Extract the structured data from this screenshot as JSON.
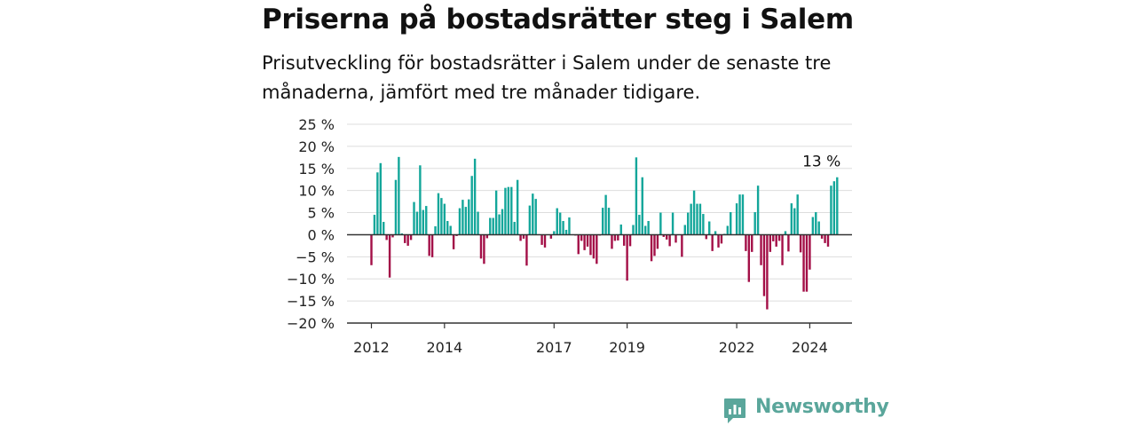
{
  "header": {
    "title": "Priserna på bostadsrätter steg i Salem",
    "subtitle": "Prisutveckling för bostadsrätter i Salem under de senaste tre månaderna, jämfört med tre månader tidigare."
  },
  "brand": {
    "name": "Newsworthy",
    "color": "#5aa69b"
  },
  "colors": {
    "positive": "#13a69a",
    "negative": "#a30f47",
    "grid": "#dddddd",
    "zero_line": "#333333"
  },
  "chart_data": {
    "type": "bar",
    "title": "Priserna på bostadsrätter steg i Salem",
    "subtitle": "Prisutveckling för bostadsrätter i Salem under de senaste tre månaderna, jämfört med tre månader tidigare.",
    "xlabel": "",
    "ylabel": "",
    "ylim": [
      -20,
      25
    ],
    "y_ticks": [
      25,
      20,
      15,
      10,
      5,
      0,
      -5,
      -10,
      -15,
      -20
    ],
    "y_tick_labels": [
      "25 %",
      "20 %",
      "15 %",
      "10 %",
      "5 %",
      "0 %",
      "−5 %",
      "−10 %",
      "−15 %",
      "−20 %"
    ],
    "x_tick_labels": [
      {
        "label": "2012",
        "date": "2012-01"
      },
      {
        "label": "2014",
        "date": "2014-01"
      },
      {
        "label": "2017",
        "date": "2017-01"
      },
      {
        "label": "2019",
        "date": "2019-01"
      },
      {
        "label": "2022",
        "date": "2022-01"
      },
      {
        "label": "2024",
        "date": "2024-01"
      }
    ],
    "start": "2012-01",
    "grid": true,
    "values": [
      -6.9,
      4.5,
      14.1,
      16.2,
      2.9,
      -1.2,
      -9.7,
      -0.6,
      12.4,
      17.6,
      0.3,
      -1.9,
      -2.5,
      -1.2,
      7.4,
      5.2,
      15.7,
      5.6,
      6.5,
      -4.8,
      -5.1,
      1.9,
      9.4,
      8.3,
      7.0,
      3.1,
      2.0,
      -3.3,
      -0.3,
      6.0,
      7.9,
      6.3,
      8.0,
      13.3,
      17.2,
      5.2,
      -5.4,
      -6.6,
      -0.8,
      3.8,
      3.8,
      10.0,
      4.6,
      5.8,
      10.6,
      10.8,
      10.8,
      2.9,
      12.4,
      -1.4,
      -0.9,
      -7.0,
      6.6,
      9.3,
      8.1,
      0.1,
      -2.3,
      -2.9,
      0.0,
      -0.9,
      0.8,
      6.0,
      5.0,
      3.1,
      1.1,
      3.9,
      0.1,
      -0.2,
      -4.4,
      -1.4,
      -3.5,
      -2.7,
      -4.6,
      -5.4,
      -6.6,
      -0.2,
      6.1,
      9.0,
      6.1,
      -3.2,
      -1.4,
      -1.3,
      2.3,
      -2.5,
      -10.4,
      -2.6,
      2.2,
      17.5,
      4.5,
      13.0,
      2.0,
      3.1,
      -6.0,
      -4.8,
      -3.2,
      5.0,
      -0.5,
      -1.1,
      -2.6,
      5.0,
      -1.8,
      -0.1,
      -5.0,
      2.2,
      5.0,
      7.0,
      10.0,
      7.0,
      7.0,
      4.7,
      -1.0,
      3.0,
      -3.7,
      0.8,
      -2.9,
      -2.0,
      0.2,
      2.0,
      5.1,
      0.0,
      7.1,
      9.1,
      9.1,
      -3.7,
      -10.7,
      -3.9,
      5.1,
      11.1,
      -6.9,
      -13.9,
      -16.9,
      -3.9,
      -1.5,
      -2.7,
      -1.4,
      -6.9,
      0.8,
      -3.8,
      7.1,
      6.0,
      9.1,
      -4.0,
      -12.9,
      -12.9,
      -7.9,
      4.0,
      5.1,
      3.0,
      -0.9,
      -1.9,
      -2.7,
      11.1,
      12.1,
      13.0
    ],
    "annotation": {
      "text": "13 %",
      "index": 153
    }
  }
}
